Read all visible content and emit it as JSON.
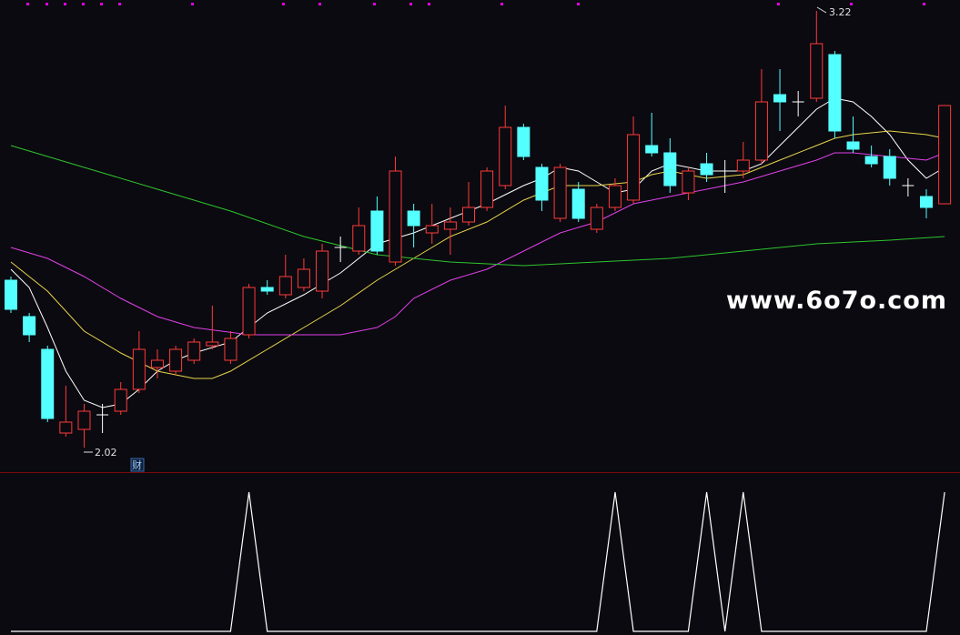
{
  "chart_data": [
    {
      "type": "candlestick",
      "ylim": [
        1.955,
        3.25
      ],
      "up_color": "#ff3a3a",
      "down_color": "#54ffff",
      "flat_color": "#ffffff",
      "open": [
        2.48,
        2.38,
        2.29,
        2.06,
        2.07,
        2.11,
        2.12,
        2.18,
        2.24,
        2.23,
        2.26,
        2.3,
        2.26,
        2.33,
        2.46,
        2.44,
        2.46,
        2.45,
        2.57,
        2.56,
        2.67,
        2.53,
        2.67,
        2.61,
        2.62,
        2.64,
        2.68,
        2.74,
        2.9,
        2.79,
        2.65,
        2.73,
        2.62,
        2.68,
        2.7,
        2.85,
        2.83,
        2.72,
        2.8,
        2.78,
        2.78,
        2.81,
        2.99,
        2.97,
        2.98,
        3.1,
        2.86,
        2.82,
        2.82,
        2.74,
        2.71,
        2.69
      ],
      "high": [
        2.49,
        2.39,
        2.3,
        2.19,
        2.14,
        2.14,
        2.2,
        2.34,
        2.29,
        2.3,
        2.32,
        2.41,
        2.34,
        2.47,
        2.48,
        2.55,
        2.54,
        2.58,
        2.6,
        2.68,
        2.71,
        2.82,
        2.69,
        2.69,
        2.68,
        2.75,
        2.79,
        2.96,
        2.91,
        2.8,
        2.8,
        2.75,
        2.69,
        2.76,
        2.93,
        2.94,
        2.87,
        2.79,
        2.83,
        2.81,
        2.86,
        3.06,
        3.06,
        3.0,
        3.22,
        3.11,
        2.93,
        2.85,
        2.84,
        2.76,
        2.73,
        2.96
      ],
      "low": [
        2.39,
        2.31,
        2.09,
        2.05,
        2.02,
        2.06,
        2.11,
        2.17,
        2.21,
        2.22,
        2.25,
        2.29,
        2.25,
        2.32,
        2.44,
        2.43,
        2.45,
        2.43,
        2.53,
        2.55,
        2.55,
        2.52,
        2.57,
        2.58,
        2.55,
        2.63,
        2.67,
        2.73,
        2.81,
        2.67,
        2.64,
        2.64,
        2.61,
        2.67,
        2.69,
        2.82,
        2.72,
        2.7,
        2.75,
        2.72,
        2.76,
        2.8,
        2.89,
        2.93,
        2.97,
        2.87,
        2.83,
        2.79,
        2.74,
        2.71,
        2.65,
        2.69
      ],
      "close": [
        2.4,
        2.33,
        2.1,
        2.09,
        2.12,
        2.11,
        2.18,
        2.29,
        2.26,
        2.29,
        2.31,
        2.31,
        2.32,
        2.46,
        2.45,
        2.49,
        2.51,
        2.56,
        2.57,
        2.63,
        2.56,
        2.78,
        2.63,
        2.63,
        2.64,
        2.68,
        2.78,
        2.9,
        2.82,
        2.7,
        2.79,
        2.65,
        2.68,
        2.74,
        2.88,
        2.83,
        2.74,
        2.78,
        2.77,
        2.78,
        2.81,
        2.97,
        2.97,
        2.97,
        3.13,
        2.89,
        2.84,
        2.8,
        2.76,
        2.74,
        2.68,
        2.96
      ],
      "series": [
        {
          "color": "#ffffff",
          "x": [
            0,
            1,
            2,
            3,
            4,
            5,
            6,
            7,
            8,
            9,
            10,
            12,
            14,
            16,
            18,
            20,
            22,
            24,
            26,
            28,
            29,
            30,
            31,
            32,
            33,
            34,
            35,
            36,
            38,
            40,
            41,
            42,
            43,
            44,
            45,
            46,
            47,
            48,
            49,
            50,
            51
          ],
          "values": [
            2.51,
            2.46,
            2.35,
            2.23,
            2.15,
            2.13,
            2.14,
            2.18,
            2.23,
            2.26,
            2.28,
            2.31,
            2.39,
            2.44,
            2.5,
            2.58,
            2.61,
            2.65,
            2.69,
            2.74,
            2.76,
            2.79,
            2.78,
            2.75,
            2.72,
            2.73,
            2.78,
            2.8,
            2.78,
            2.78,
            2.8,
            2.85,
            2.9,
            2.95,
            2.98,
            2.97,
            2.93,
            2.88,
            2.81,
            2.76,
            2.79
          ]
        },
        {
          "color": "#e8d44a",
          "x": [
            0,
            2,
            4,
            6,
            8,
            10,
            11,
            12,
            14,
            16,
            18,
            20,
            22,
            24,
            26,
            28,
            30,
            32,
            34,
            35,
            36,
            38,
            40,
            42,
            44,
            45,
            46,
            48,
            50,
            51
          ],
          "values": [
            2.53,
            2.45,
            2.34,
            2.28,
            2.23,
            2.21,
            2.21,
            2.23,
            2.29,
            2.35,
            2.41,
            2.48,
            2.54,
            2.6,
            2.64,
            2.7,
            2.74,
            2.74,
            2.75,
            2.77,
            2.78,
            2.76,
            2.77,
            2.81,
            2.85,
            2.87,
            2.88,
            2.89,
            2.88,
            2.87
          ]
        },
        {
          "color": "#e040e8",
          "x": [
            0,
            2,
            4,
            6,
            8,
            10,
            13,
            16,
            18,
            20,
            21,
            22,
            24,
            26,
            28,
            30,
            32,
            34,
            36,
            38,
            40,
            42,
            44,
            45,
            46,
            48,
            50,
            51
          ],
          "values": [
            2.57,
            2.54,
            2.49,
            2.43,
            2.38,
            2.35,
            2.33,
            2.33,
            2.33,
            2.35,
            2.38,
            2.43,
            2.48,
            2.51,
            2.56,
            2.61,
            2.64,
            2.69,
            2.71,
            2.73,
            2.75,
            2.78,
            2.81,
            2.83,
            2.83,
            2.82,
            2.81,
            2.83
          ]
        },
        {
          "color": "#2ec42e",
          "x": [
            0,
            4,
            8,
            12,
            16,
            20,
            24,
            28,
            32,
            36,
            40,
            44,
            48,
            51
          ],
          "values": [
            2.85,
            2.79,
            2.73,
            2.67,
            2.6,
            2.55,
            2.53,
            2.52,
            2.53,
            2.54,
            2.56,
            2.58,
            2.59,
            2.6
          ]
        }
      ],
      "annotations": [
        "3.22",
        "2.02",
        "财"
      ]
    },
    {
      "type": "line",
      "ylim": [
        0,
        1
      ],
      "color": "#ffffff",
      "values": [
        0,
        0,
        0,
        0,
        0,
        0,
        0,
        0,
        0,
        0,
        0,
        0,
        0,
        1,
        0,
        0,
        0,
        0,
        0,
        0,
        0,
        0,
        0,
        0,
        0,
        0,
        0,
        0,
        0,
        0,
        0,
        0,
        0,
        1,
        0,
        0,
        0,
        0,
        1,
        0,
        1,
        0,
        0,
        0,
        0,
        0,
        0,
        0,
        0,
        0,
        0,
        1
      ]
    }
  ],
  "watermark": "www.6o7o.com"
}
